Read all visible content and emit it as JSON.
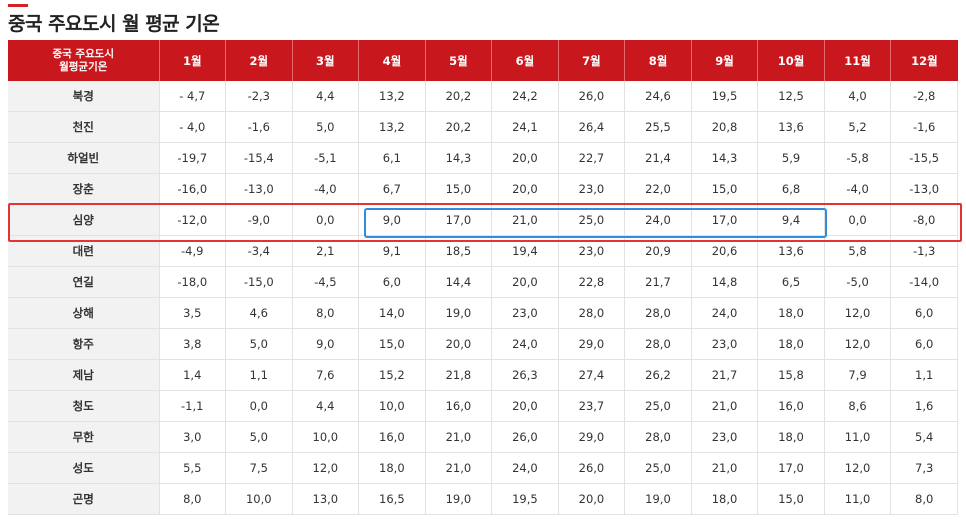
{
  "page_title": "중국 주요도시 월 평균 기온",
  "table": {
    "corner_line1": "중국 주요도시",
    "corner_line2": "월평균기온",
    "months": [
      "1월",
      "2월",
      "3월",
      "4월",
      "5월",
      "6월",
      "7월",
      "8월",
      "9월",
      "10월",
      "11월",
      "12월"
    ],
    "rows": [
      {
        "city": "북경",
        "values": [
          "- 4,7",
          "-2,3",
          "4,4",
          "13,2",
          "20,2",
          "24,2",
          "26,0",
          "24,6",
          "19,5",
          "12,5",
          "4,0",
          "-2,8"
        ]
      },
      {
        "city": "천진",
        "values": [
          "- 4,0",
          "-1,6",
          "5,0",
          "13,2",
          "20,2",
          "24,1",
          "26,4",
          "25,5",
          "20,8",
          "13,6",
          "5,2",
          "-1,6"
        ]
      },
      {
        "city": "하얼빈",
        "values": [
          "-19,7",
          "-15,4",
          "-5,1",
          "6,1",
          "14,3",
          "20,0",
          "22,7",
          "21,4",
          "14,3",
          "5,9",
          "-5,8",
          "-15,5"
        ]
      },
      {
        "city": "장춘",
        "values": [
          "-16,0",
          "-13,0",
          "-4,0",
          "6,7",
          "15,0",
          "20,0",
          "23,0",
          "22,0",
          "15,0",
          "6,8",
          "-4,0",
          "-13,0"
        ]
      },
      {
        "city": "심양",
        "values": [
          "-12,0",
          "-9,0",
          "0,0",
          "9,0",
          "17,0",
          "21,0",
          "25,0",
          "24,0",
          "17,0",
          "9,4",
          "0,0",
          "-8,0"
        ]
      },
      {
        "city": "대련",
        "values": [
          "-4,9",
          "-3,4",
          "2,1",
          "9,1",
          "18,5",
          "19,4",
          "23,0",
          "20,9",
          "20,6",
          "13,6",
          "5,8",
          "-1,3"
        ]
      },
      {
        "city": "연길",
        "values": [
          "-18,0",
          "-15,0",
          "-4,5",
          "6,0",
          "14,4",
          "20,0",
          "22,8",
          "21,7",
          "14,8",
          "6,5",
          "-5,0",
          "-14,0"
        ]
      },
      {
        "city": "상해",
        "values": [
          "3,5",
          "4,6",
          "8,0",
          "14,0",
          "19,0",
          "23,0",
          "28,0",
          "28,0",
          "24,0",
          "18,0",
          "12,0",
          "6,0"
        ]
      },
      {
        "city": "항주",
        "values": [
          "3,8",
          "5,0",
          "9,0",
          "15,0",
          "20,0",
          "24,0",
          "29,0",
          "28,0",
          "23,0",
          "18,0",
          "12,0",
          "6,0"
        ]
      },
      {
        "city": "제남",
        "values": [
          "1,4",
          "1,1",
          "7,6",
          "15,2",
          "21,8",
          "26,3",
          "27,4",
          "26,2",
          "21,7",
          "15,8",
          "7,9",
          "1,1"
        ]
      },
      {
        "city": "청도",
        "values": [
          "-1,1",
          "0,0",
          "4,4",
          "10,0",
          "16,0",
          "20,0",
          "23,7",
          "25,0",
          "21,0",
          "16,0",
          "8,6",
          "1,6"
        ]
      },
      {
        "city": "무한",
        "values": [
          "3,0",
          "5,0",
          "10,0",
          "16,0",
          "21,0",
          "26,0",
          "29,0",
          "28,0",
          "23,0",
          "18,0",
          "11,0",
          "5,4"
        ]
      },
      {
        "city": "성도",
        "values": [
          "5,5",
          "7,5",
          "12,0",
          "18,0",
          "21,0",
          "24,0",
          "26,0",
          "25,0",
          "21,0",
          "17,0",
          "12,0",
          "7,3"
        ]
      },
      {
        "city": "곤명",
        "values": [
          "8,0",
          "10,0",
          "13,0",
          "16,5",
          "19,0",
          "19,5",
          "20,0",
          "19,0",
          "18,0",
          "15,0",
          "11,0",
          "8,0"
        ]
      }
    ]
  },
  "colors": {
    "header_bg": "#c8181e",
    "highlight_row_border": "#e23434",
    "highlight_range_border": "#2f8de0"
  }
}
